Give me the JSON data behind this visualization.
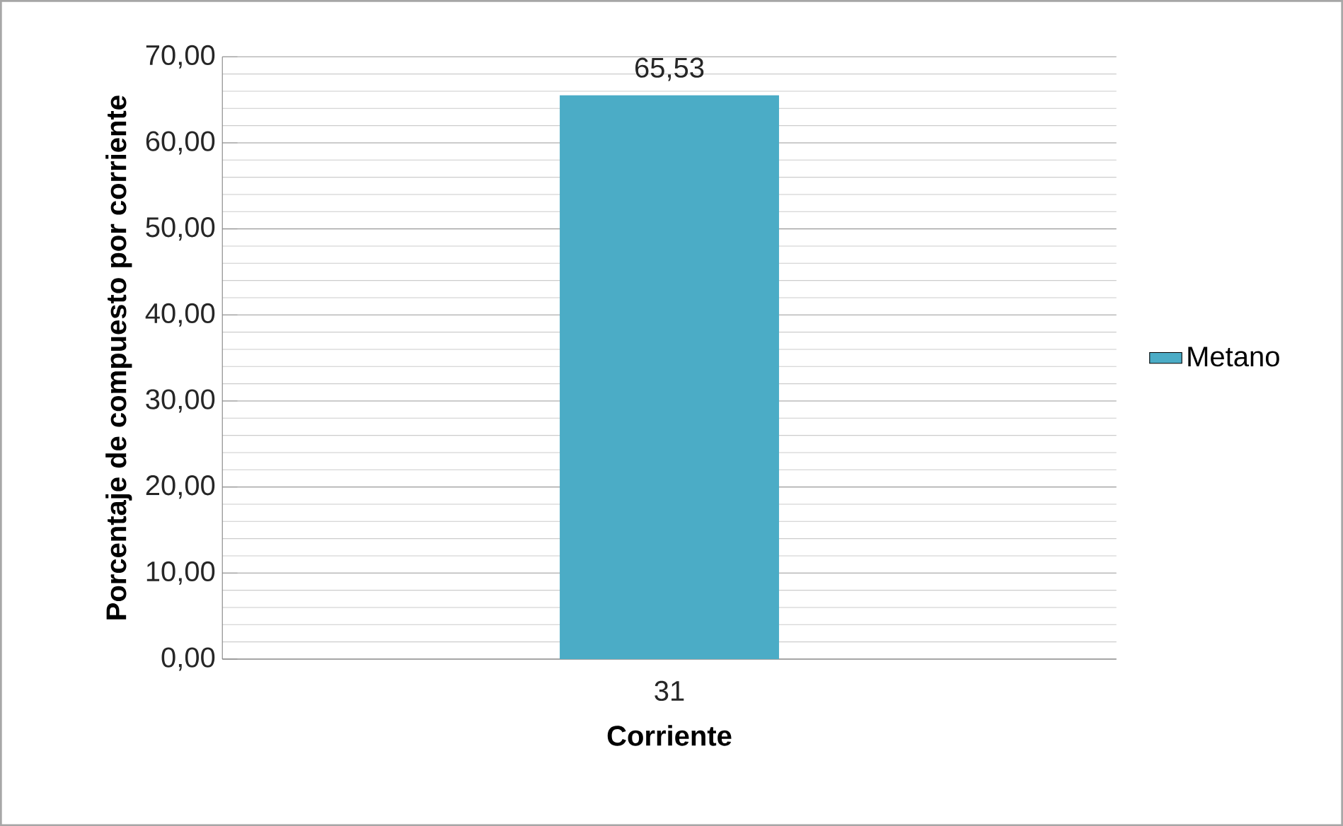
{
  "chart_data": {
    "type": "bar",
    "xlabel": "Corriente",
    "ylabel": "Porcentaje de compuesto por corriente",
    "categories": [
      "31"
    ],
    "series": [
      {
        "name": "Metano",
        "color": "#4bacc6",
        "values": [
          65.53
        ]
      }
    ],
    "value_labels": [
      "65,53"
    ],
    "ylim": [
      0,
      70
    ],
    "yticks": [
      {
        "value": 0,
        "label": "0,00"
      },
      {
        "value": 10,
        "label": "10,00"
      },
      {
        "value": 20,
        "label": "20,00"
      },
      {
        "value": 30,
        "label": "30,00"
      },
      {
        "value": 40,
        "label": "40,00"
      },
      {
        "value": 50,
        "label": "50,00"
      },
      {
        "value": 60,
        "label": "60,00"
      },
      {
        "value": 70,
        "label": "70,00"
      }
    ],
    "grid": "y",
    "legend": "right"
  }
}
